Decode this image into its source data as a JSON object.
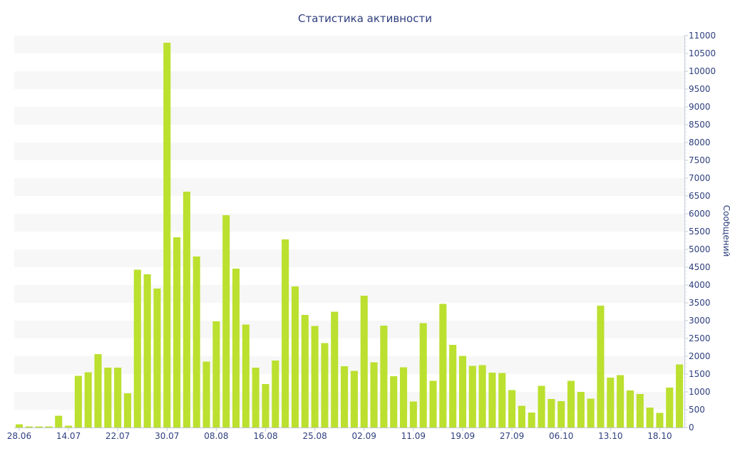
{
  "chart_data": {
    "type": "bar",
    "title": "Статистика активности",
    "ylabel": "Сообщений",
    "xlabel": "",
    "ylim": [
      0,
      11000
    ],
    "y_ticks": [
      0,
      500,
      1000,
      1500,
      2000,
      2500,
      3000,
      3500,
      4000,
      4500,
      5000,
      5500,
      6000,
      6500,
      7000,
      7500,
      8000,
      8500,
      9000,
      9500,
      10000,
      10500,
      11000
    ],
    "y_axis_side": "right",
    "grid": "alternating horizontal bands",
    "x_tick_labels": [
      {
        "label": "28.06",
        "index": 0
      },
      {
        "label": "14.07",
        "index": 5
      },
      {
        "label": "22.07",
        "index": 10
      },
      {
        "label": "30.07",
        "index": 15
      },
      {
        "label": "08.08",
        "index": 20
      },
      {
        "label": "16.08",
        "index": 25
      },
      {
        "label": "25.08",
        "index": 30
      },
      {
        "label": "02.09",
        "index": 35
      },
      {
        "label": "11.09",
        "index": 40
      },
      {
        "label": "19.09",
        "index": 45
      },
      {
        "label": "27.09",
        "index": 50
      },
      {
        "label": "06.10",
        "index": 55
      },
      {
        "label": "13.10",
        "index": 60
      },
      {
        "label": "18.10",
        "index": 65
      }
    ],
    "values": [
      90,
      30,
      30,
      30,
      330,
      50,
      1450,
      1550,
      2060,
      1680,
      1680,
      960,
      4430,
      4300,
      3900,
      10800,
      5340,
      6620,
      4800,
      1850,
      2980,
      5960,
      4460,
      2890,
      1680,
      1220,
      1880,
      5280,
      3960,
      3160,
      2850,
      2370,
      3250,
      1720,
      1590,
      3700,
      1830,
      2860,
      1440,
      1690,
      730,
      2930,
      1310,
      3470,
      2320,
      2010,
      1730,
      1750,
      1540,
      1530,
      1050,
      610,
      420,
      1170,
      800,
      740,
      1310,
      1000,
      810,
      3420,
      1400,
      1470,
      1040,
      940,
      560,
      410,
      1120,
      1770
    ],
    "color": "#bbe02f",
    "band_color": "#f7f7f7",
    "text_color": "#2e3f7e"
  }
}
